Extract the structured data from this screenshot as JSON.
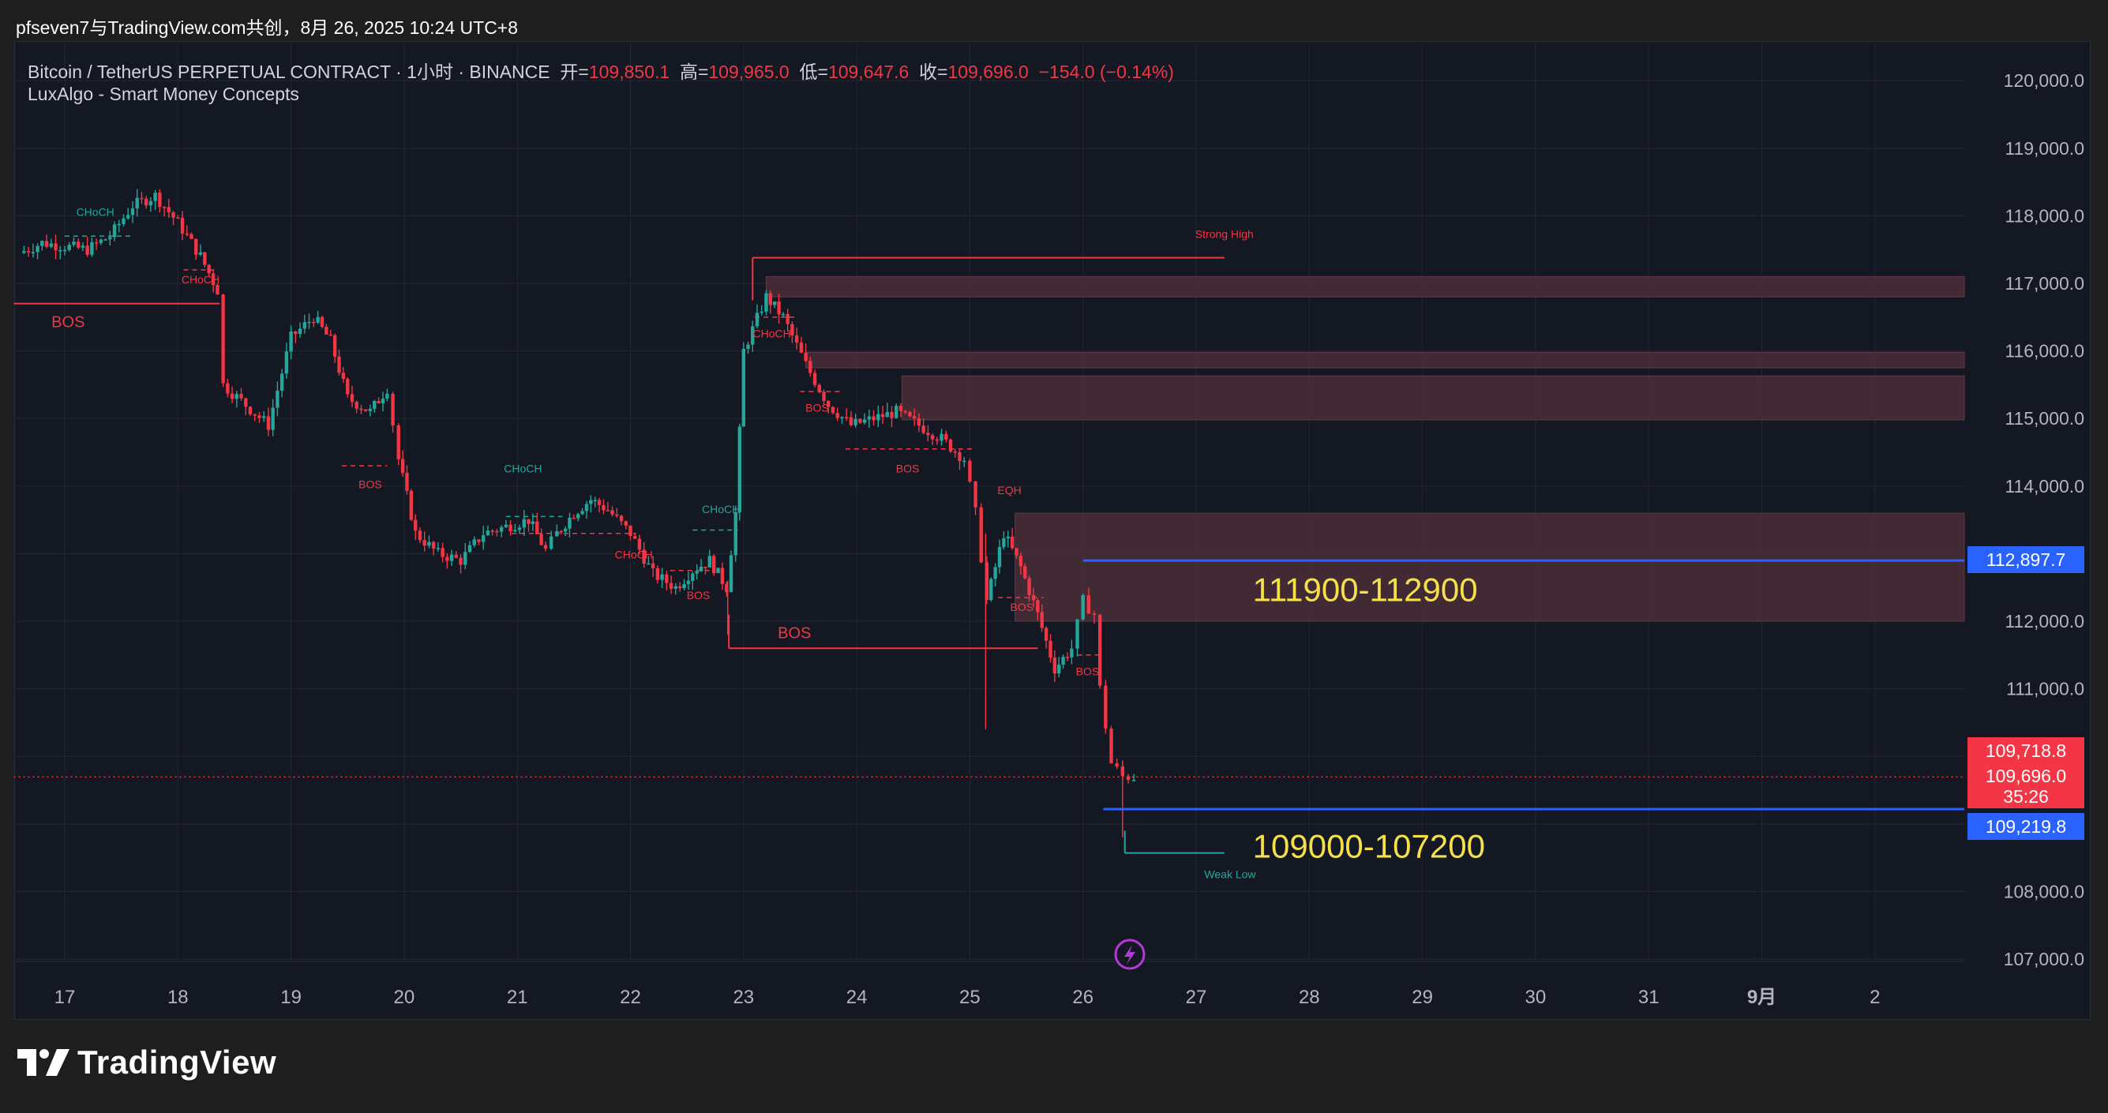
{
  "header": {
    "title": "pfseven7与TradingView.com共创，8月 26, 2025 10:24 UTC+8"
  },
  "legend": {
    "symbol": "Bitcoin / TetherUS PERPETUAL CONTRACT · 1小时 · BINANCE",
    "open_label": "开=",
    "open_value": "109,850.1",
    "high_label": "高=",
    "high_value": "109,965.0",
    "low_label": "低=",
    "low_value": "109,647.6",
    "close_label": "收=",
    "close_value": "109,696.0",
    "change": "−154.0 (−0.14%)",
    "indicator": "LuxAlgo - Smart Money Concepts"
  },
  "price_badges": {
    "blue_upper": "112,897.7",
    "red_top": "109,718.8",
    "red_current": "109,696.0",
    "countdown": "35:26",
    "blue_lower": "109,219.8"
  },
  "footer": {
    "brand": "TradingView"
  },
  "colors": {
    "background": "#141822",
    "grid": "#232733",
    "bull": "#26a69a",
    "bear": "#f23645",
    "zone": "#4a2e38",
    "blue_line": "#2962ff",
    "annotation": "#f5e04a",
    "axis_text": "#b2b5be"
  },
  "chart_data": {
    "type": "candlestick",
    "title": "Bitcoin / TetherUS PERPETUAL CONTRACT · 1小时 · BINANCE",
    "interval": "1h",
    "y_axis": {
      "ticks": [
        107000,
        108000,
        109000,
        110000,
        111000,
        112000,
        113000,
        114000,
        115000,
        116000,
        117000,
        118000,
        119000,
        120000
      ],
      "tick_labels": [
        "107,000.0",
        "108,000.0",
        "",
        "",
        "111,000.0",
        "112,000.0",
        "",
        "114,000.0",
        "115,000.0",
        "116,000.0",
        "117,000.0",
        "118,000.0",
        "119,000.0",
        "120,000.0"
      ],
      "range": [
        106800,
        120300
      ]
    },
    "x_axis": {
      "ticks": [
        "17",
        "18",
        "19",
        "20",
        "21",
        "22",
        "23",
        "24",
        "25",
        "26",
        "27",
        "28",
        "29",
        "30",
        "31",
        "9月",
        "2"
      ],
      "day_range": [
        16.55,
        33.8
      ]
    },
    "price_path": [
      [
        16.6,
        117450
      ],
      [
        16.8,
        117600
      ],
      [
        17.0,
        117550
      ],
      [
        17.2,
        117500
      ],
      [
        17.4,
        117700
      ],
      [
        17.6,
        118150
      ],
      [
        17.8,
        118300
      ],
      [
        18.0,
        117900
      ],
      [
        18.2,
        117400
      ],
      [
        18.35,
        116900
      ],
      [
        18.4,
        115500
      ],
      [
        18.6,
        115200
      ],
      [
        18.8,
        114900
      ],
      [
        19.0,
        116200
      ],
      [
        19.2,
        116500
      ],
      [
        19.35,
        116150
      ],
      [
        19.5,
        115300
      ],
      [
        19.7,
        115100
      ],
      [
        19.85,
        115450
      ],
      [
        19.95,
        114400
      ],
      [
        20.1,
        113300
      ],
      [
        20.3,
        113000
      ],
      [
        20.5,
        112900
      ],
      [
        20.7,
        113300
      ],
      [
        20.9,
        113400
      ],
      [
        21.1,
        113500
      ],
      [
        21.25,
        113050
      ],
      [
        21.35,
        113300
      ],
      [
        21.5,
        113600
      ],
      [
        21.65,
        113800
      ],
      [
        21.8,
        113650
      ],
      [
        22.0,
        113300
      ],
      [
        22.2,
        112700
      ],
      [
        22.4,
        112500
      ],
      [
        22.55,
        112750
      ],
      [
        22.7,
        112900
      ],
      [
        22.85,
        112500
      ],
      [
        22.93,
        113600
      ],
      [
        23.0,
        116000
      ],
      [
        23.2,
        116800
      ],
      [
        23.35,
        116500
      ],
      [
        23.55,
        115800
      ],
      [
        23.75,
        115200
      ],
      [
        23.95,
        114900
      ],
      [
        24.15,
        115000
      ],
      [
        24.35,
        115100
      ],
      [
        24.55,
        114900
      ],
      [
        24.75,
        114700
      ],
      [
        24.95,
        114400
      ],
      [
        25.05,
        113600
      ],
      [
        25.15,
        112300
      ],
      [
        25.3,
        113300
      ],
      [
        25.45,
        112800
      ],
      [
        25.6,
        112100
      ],
      [
        25.75,
        111300
      ],
      [
        25.9,
        111600
      ],
      [
        26.0,
        112300
      ],
      [
        26.1,
        112100
      ],
      [
        26.15,
        111000
      ],
      [
        26.25,
        109900
      ],
      [
        26.35,
        109700
      ],
      [
        26.45,
        109696
      ]
    ],
    "structure_labels": [
      {
        "text": "CHoCH",
        "day": 17.27,
        "price": 118000,
        "bias": "bullish"
      },
      {
        "text": "CHoCH",
        "day": 18.2,
        "price": 117000,
        "bias": "bearish"
      },
      {
        "text": "BOS",
        "day": 17.03,
        "price": 116350,
        "bias": "bearish",
        "size": "large"
      },
      {
        "text": "BOS",
        "day": 19.7,
        "price": 113970,
        "bias": "bearish"
      },
      {
        "text": "CHoCH",
        "day": 21.05,
        "price": 114200,
        "bias": "bullish"
      },
      {
        "text": "CHoCH",
        "day": 22.03,
        "price": 112930,
        "bias": "bearish"
      },
      {
        "text": "CHoCH",
        "day": 22.8,
        "price": 113600,
        "bias": "bullish"
      },
      {
        "text": "BOS",
        "day": 22.6,
        "price": 112330,
        "bias": "bearish"
      },
      {
        "text": "CHoCH",
        "day": 23.25,
        "price": 116200,
        "bias": "bearish"
      },
      {
        "text": "BOS",
        "day": 23.65,
        "price": 115100,
        "bias": "bearish"
      },
      {
        "text": "BOS",
        "day": 24.45,
        "price": 114200,
        "bias": "bearish"
      },
      {
        "text": "BOS",
        "day": 23.45,
        "price": 111750,
        "bias": "bearish",
        "size": "large"
      },
      {
        "text": "EQH",
        "day": 25.35,
        "price": 113880,
        "bias": "bearish"
      },
      {
        "text": "BOS",
        "day": 25.46,
        "price": 112150,
        "bias": "bearish"
      },
      {
        "text": "BOS",
        "day": 26.04,
        "price": 111200,
        "bias": "bearish"
      },
      {
        "text": "Strong High",
        "day": 27.25,
        "price": 117670,
        "bias": "bearish"
      },
      {
        "text": "Weak Low",
        "day": 27.3,
        "price": 108200,
        "bias": "bullish"
      }
    ],
    "levels": [
      {
        "name": "strong-high",
        "price": 117380,
        "from": 23.08,
        "to": 27.25
      },
      {
        "name": "bos-big-left",
        "price": 116700,
        "from": 16.55,
        "to": 18.37
      },
      {
        "name": "bos-big-right",
        "price": 111600,
        "from": 22.87,
        "to": 25.6
      },
      {
        "name": "weak-low",
        "price": 108570,
        "from": 26.37,
        "to": 27.25
      }
    ],
    "order_blocks": [
      [
        117100,
        116800
      ],
      [
        115980,
        115750
      ],
      [
        115630,
        114980
      ],
      [
        113600,
        112000
      ]
    ],
    "horizontal_lines": [
      {
        "price": 112897.7,
        "from": 26.0,
        "color": "blue"
      },
      {
        "price": 109219.8,
        "from": 26.18,
        "color": "blue"
      },
      {
        "price": 109696.0,
        "from": 16.55,
        "color": "red-dotted"
      }
    ],
    "annotations": [
      {
        "text": "111900-112900",
        "day": 27.5,
        "price": 112300
      },
      {
        "text": "109000-107200",
        "day": 27.5,
        "price": 108500
      }
    ]
  }
}
